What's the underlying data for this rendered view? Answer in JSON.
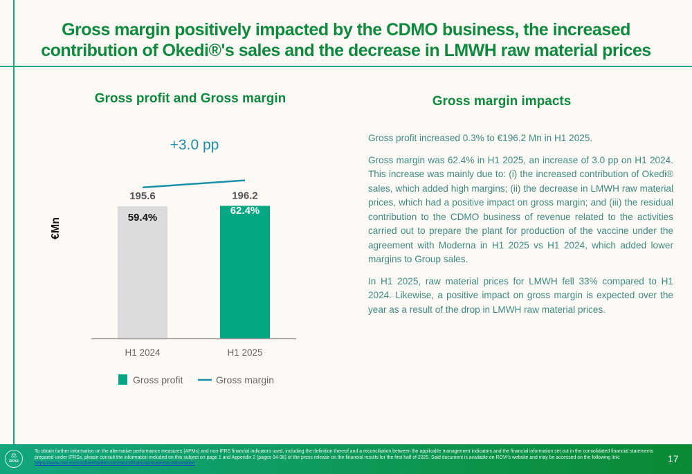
{
  "slide": {
    "title": "Gross margin positively impacted by the CDMO business, the increased contribution of Okedi®'s sales and the decrease in LMWH raw material prices",
    "page_number": "17",
    "colors": {
      "brand_green": "#0e8a3e",
      "accent_teal": "#12a67f",
      "bar_prior": "#dcdcdc",
      "bar_current": "#03a883",
      "margin_line": "#1a8faa"
    }
  },
  "left_panel": {
    "heading": "Gross profit and Gross margin"
  },
  "right_panel": {
    "heading": "Gross margin impacts",
    "paragraphs": [
      "Gross profit increased 0.3% to €196.2 Mn in H1 2025.",
      "Gross margin was 62.4% in H1 2025, an increase of 3.0 pp on H1 2024. This increase was mainly due to: (i) the increased contribution of Okedi® sales, which added high margins; (ii) the decrease in LMWH raw material prices, which had a positive impact on gross margin; and (iii) the residual contribution to the CDMO business of revenue related to the activities carried out to prepare the plant for production of the vaccine under the agreement with Moderna in H1 2025 vs H1 2024, which added lower margins to Group sales.",
      "In H1 2025, raw material prices for LMWH fell 33% compared to H1 2024. Likewise, a positive impact on gross margin is expected over the year as a result of the drop in LMWH raw material prices."
    ]
  },
  "footer": {
    "logo_text": "ROVI",
    "text": "To obtain further information on the alternative performance measures (APMs) and non-IFRS financial indicators used, including the definition thereof and a reconciliation between the applicable management indicators and the financial information set out in the consolidated financial statements prepared under IFRSs, please consult the information included on this subject on page 1 and Appendix 2 (pages 34-38) of the press release on the financial results for the first half of 2025. Said document is available on ROVI's website and may be accessed on the following link: ",
    "link": "https://www.rovi.es/en/shareholders-investors/financial-business-information",
    "link_suffix": "."
  },
  "chart_data": {
    "type": "bar",
    "title": "Gross profit and Gross margin",
    "categories": [
      "H1 2024",
      "H1 2025"
    ],
    "series": [
      {
        "name": "Gross profit",
        "type": "bar",
        "values": [
          195.6,
          196.2
        ],
        "labels": [
          "195.6",
          "196.2"
        ]
      },
      {
        "name": "Gross margin",
        "type": "line",
        "values": [
          59.4,
          62.4
        ],
        "labels": [
          "59.4%",
          "62.4%"
        ],
        "unit": "%"
      }
    ],
    "annotation": "+3.0 pp",
    "ylabel": "€Mn",
    "ylim": [
      0,
      250
    ],
    "yticks": [
      0,
      50,
      100,
      150,
      200,
      250
    ],
    "y2lim": [
      0,
      80
    ],
    "legend": [
      "Gross profit",
      "Gross margin"
    ],
    "legend_position": "bottom",
    "grid": false
  }
}
